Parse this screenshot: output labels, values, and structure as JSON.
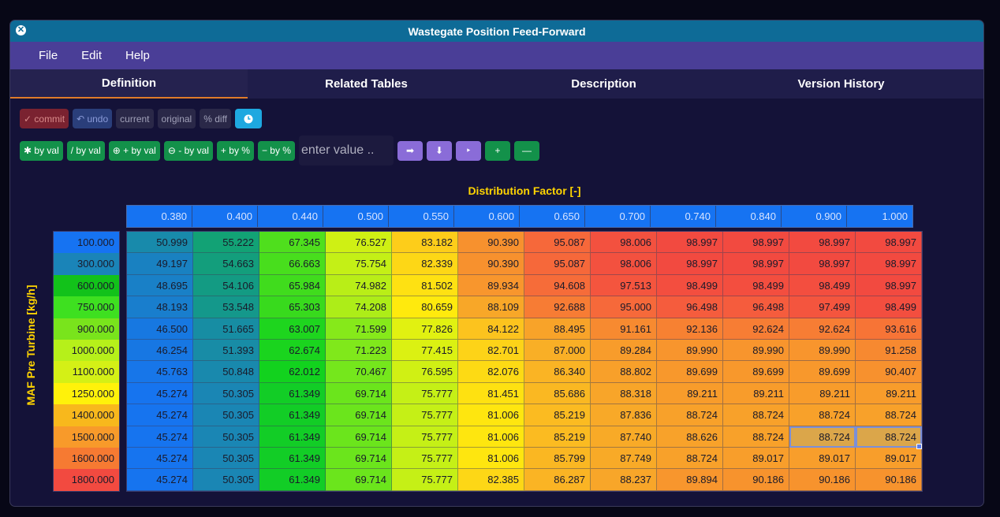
{
  "window": {
    "title": "Wastegate Position Feed-Forward",
    "close_icon": "close-icon"
  },
  "menu": {
    "items": [
      "File",
      "Edit",
      "Help"
    ]
  },
  "tabs": [
    "Definition",
    "Related Tables",
    "Description",
    "Version History"
  ],
  "active_tab": "Definition",
  "toolbar": {
    "commit": "✓ commit",
    "undo": "↶ undo",
    "current": "current",
    "original": "original",
    "pct_diff": "% diff",
    "clock_icon": "clock-icon",
    "mul_by_val": "✱ by val",
    "div_by_val": "/ by val",
    "add_by_val": "⊕ + by val",
    "sub_by_val": "⊖ - by val",
    "add_by_pct": "+ by %",
    "sub_by_pct": "− by %",
    "value_placeholder": "enter value ..",
    "right_arrow": "➡",
    "down_arrow": "⬇",
    "play": "‣",
    "plus": "+",
    "minus": "—"
  },
  "x_axis_label": "Distribution Factor [-]",
  "y_axis_label": "MAF Pre Turbine [kg/h]",
  "x_values": [
    "0.380",
    "0.400",
    "0.440",
    "0.500",
    "0.550",
    "0.600",
    "0.650",
    "0.700",
    "0.740",
    "0.840",
    "0.900",
    "1.000"
  ],
  "y_values": [
    "100.000",
    "300.000",
    "600.000",
    "750.000",
    "900.000",
    "1000.000",
    "1100.000",
    "1250.000",
    "1400.000",
    "1500.000",
    "1600.000",
    "1800.000"
  ],
  "y_colors": [
    "#1673f2",
    "#1a84b8",
    "#12c21a",
    "#3ee020",
    "#79e41c",
    "#b6f01a",
    "#d4f016",
    "#fff20a",
    "#f8b81c",
    "#f89a2a",
    "#f67a32",
    "#f24a40"
  ],
  "table": [
    [
      "50.999",
      "55.222",
      "67.345",
      "76.527",
      "83.182",
      "90.390",
      "95.087",
      "98.006",
      "98.997",
      "98.997",
      "98.997",
      "98.997"
    ],
    [
      "49.197",
      "54.663",
      "66.663",
      "75.754",
      "82.339",
      "90.390",
      "95.087",
      "98.006",
      "98.997",
      "98.997",
      "98.997",
      "98.997"
    ],
    [
      "48.695",
      "54.106",
      "65.984",
      "74.982",
      "81.502",
      "89.934",
      "94.608",
      "97.513",
      "98.499",
      "98.499",
      "98.499",
      "98.997"
    ],
    [
      "48.193",
      "53.548",
      "65.303",
      "74.208",
      "80.659",
      "88.109",
      "92.688",
      "95.000",
      "96.498",
      "96.498",
      "97.499",
      "98.499"
    ],
    [
      "46.500",
      "51.665",
      "63.007",
      "71.599",
      "77.826",
      "84.122",
      "88.495",
      "91.161",
      "92.136",
      "92.624",
      "92.624",
      "93.616"
    ],
    [
      "46.254",
      "51.393",
      "62.674",
      "71.223",
      "77.415",
      "82.701",
      "87.000",
      "89.284",
      "89.990",
      "89.990",
      "89.990",
      "91.258"
    ],
    [
      "45.763",
      "50.848",
      "62.012",
      "70.467",
      "76.595",
      "82.076",
      "86.340",
      "88.802",
      "89.699",
      "89.699",
      "89.699",
      "90.407"
    ],
    [
      "45.274",
      "50.305",
      "61.349",
      "69.714",
      "75.777",
      "81.451",
      "85.686",
      "88.318",
      "89.211",
      "89.211",
      "89.211",
      "89.211"
    ],
    [
      "45.274",
      "50.305",
      "61.349",
      "69.714",
      "75.777",
      "81.006",
      "85.219",
      "87.836",
      "88.724",
      "88.724",
      "88.724",
      "88.724"
    ],
    [
      "45.274",
      "50.305",
      "61.349",
      "69.714",
      "75.777",
      "81.006",
      "85.219",
      "87.740",
      "88.626",
      "88.724",
      "88.724",
      "88.724"
    ],
    [
      "45.274",
      "50.305",
      "61.349",
      "69.714",
      "75.777",
      "81.006",
      "85.799",
      "87.749",
      "88.724",
      "89.017",
      "89.017",
      "89.017"
    ],
    [
      "45.274",
      "50.305",
      "61.349",
      "69.714",
      "75.777",
      "82.385",
      "86.287",
      "88.237",
      "89.894",
      "90.186",
      "90.186",
      "90.186"
    ]
  ],
  "selected_cells": [
    [
      9,
      10
    ],
    [
      9,
      11
    ]
  ],
  "colors": {
    "titlebar": "#0e6b97",
    "menubar": "#4a3e97",
    "axis_label": "#ffd400",
    "active_tab_underline": "#e07b2a"
  }
}
